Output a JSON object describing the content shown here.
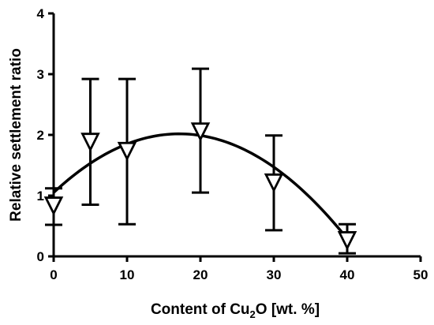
{
  "chart_data": {
    "type": "scatter",
    "xlabel": "Content of Cu",
    "xlabel_subscript": "2",
    "xlabel_suffix": "O [wt. %]",
    "ylabel": "Relative settlement ratio",
    "xlim": [
      0,
      50
    ],
    "ylim": [
      0,
      4
    ],
    "x_ticks": [
      0,
      10,
      20,
      30,
      40,
      50
    ],
    "y_ticks": [
      0,
      1,
      2,
      3,
      4
    ],
    "grid": false,
    "marker": "open-down-triangle",
    "points": [
      {
        "x": 0,
        "y": 0.85,
        "err_low": 0.52,
        "err_high": 1.12
      },
      {
        "x": 5,
        "y": 1.9,
        "err_low": 0.85,
        "err_high": 2.92
      },
      {
        "x": 10,
        "y": 1.75,
        "err_low": 0.53,
        "err_high": 2.92
      },
      {
        "x": 20,
        "y": 2.07,
        "err_low": 1.05,
        "err_high": 3.09
      },
      {
        "x": 30,
        "y": 1.23,
        "err_low": 0.43,
        "err_high": 1.99
      },
      {
        "x": 40,
        "y": 0.28,
        "err_low": 0.05,
        "err_high": 0.53
      }
    ],
    "fit_curve": {
      "type": "quadratic",
      "coefficients": [
        1.05,
        0.113,
        -0.0033
      ],
      "x_range": [
        0,
        40
      ]
    }
  }
}
